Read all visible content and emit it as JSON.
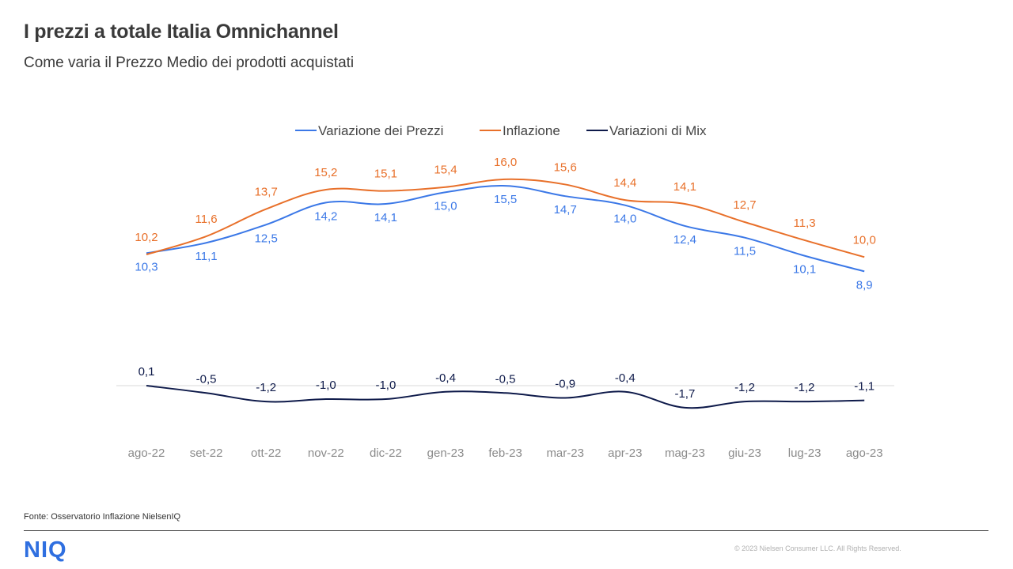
{
  "header": {
    "title": "I prezzi a totale Italia Omnichannel",
    "subtitle": "Come varia il Prezzo Medio dei prodotti acquistati"
  },
  "footer": {
    "source": "Fonte: Osservatorio Inflazione NielsenIQ",
    "logo": "NIQ",
    "copyright": "© 2023 Nielsen Consumer LLC. All Rights Reserved."
  },
  "colors": {
    "prezzi": "#3b78e7",
    "inflazione": "#e8702a",
    "mix": "#0e1a4a",
    "logo": "#2f6fe0"
  },
  "chart_data": {
    "type": "line",
    "legend_position": "top",
    "grid": false,
    "categories": [
      "ago-22",
      "set-22",
      "ott-22",
      "nov-22",
      "dic-22",
      "gen-23",
      "feb-23",
      "mar-23",
      "apr-23",
      "mag-23",
      "giu-23",
      "lug-23",
      "ago-23"
    ],
    "series": [
      {
        "name": "Variazione dei Prezzi",
        "color": "#3b78e7",
        "values": [
          10.3,
          11.1,
          12.5,
          14.2,
          14.1,
          15.0,
          15.5,
          14.7,
          14.0,
          12.4,
          11.5,
          10.1,
          8.9
        ],
        "labels": [
          "10,3",
          "11,1",
          "12,5",
          "14,2",
          "14,1",
          "15,0",
          "15,5",
          "14,7",
          "14,0",
          "12,4",
          "11,5",
          "10,1",
          "8,9"
        ]
      },
      {
        "name": "Inflazione",
        "color": "#e8702a",
        "values": [
          10.2,
          11.6,
          13.7,
          15.2,
          15.1,
          15.4,
          16.0,
          15.6,
          14.4,
          14.1,
          12.7,
          11.3,
          10.0
        ],
        "labels": [
          "10,2",
          "11,6",
          "13,7",
          "15,2",
          "15,1",
          "15,4",
          "16,0",
          "15,6",
          "14,4",
          "14,1",
          "12,7",
          "11,3",
          "10,0"
        ]
      },
      {
        "name": "Variazioni di Mix",
        "color": "#0e1a4a",
        "values": [
          0.1,
          -0.5,
          -1.2,
          -1.0,
          -1.0,
          -0.4,
          -0.5,
          -0.9,
          -0.4,
          -1.7,
          -1.2,
          -1.2,
          -1.1
        ],
        "labels": [
          "0,1",
          "-0,5",
          "-1,2",
          "-1,0",
          "-1,0",
          "-0,4",
          "-0,5",
          "-0,9",
          "-0,4",
          "-1,7",
          "-1,2",
          "-1,2",
          "-1,1"
        ]
      }
    ]
  }
}
